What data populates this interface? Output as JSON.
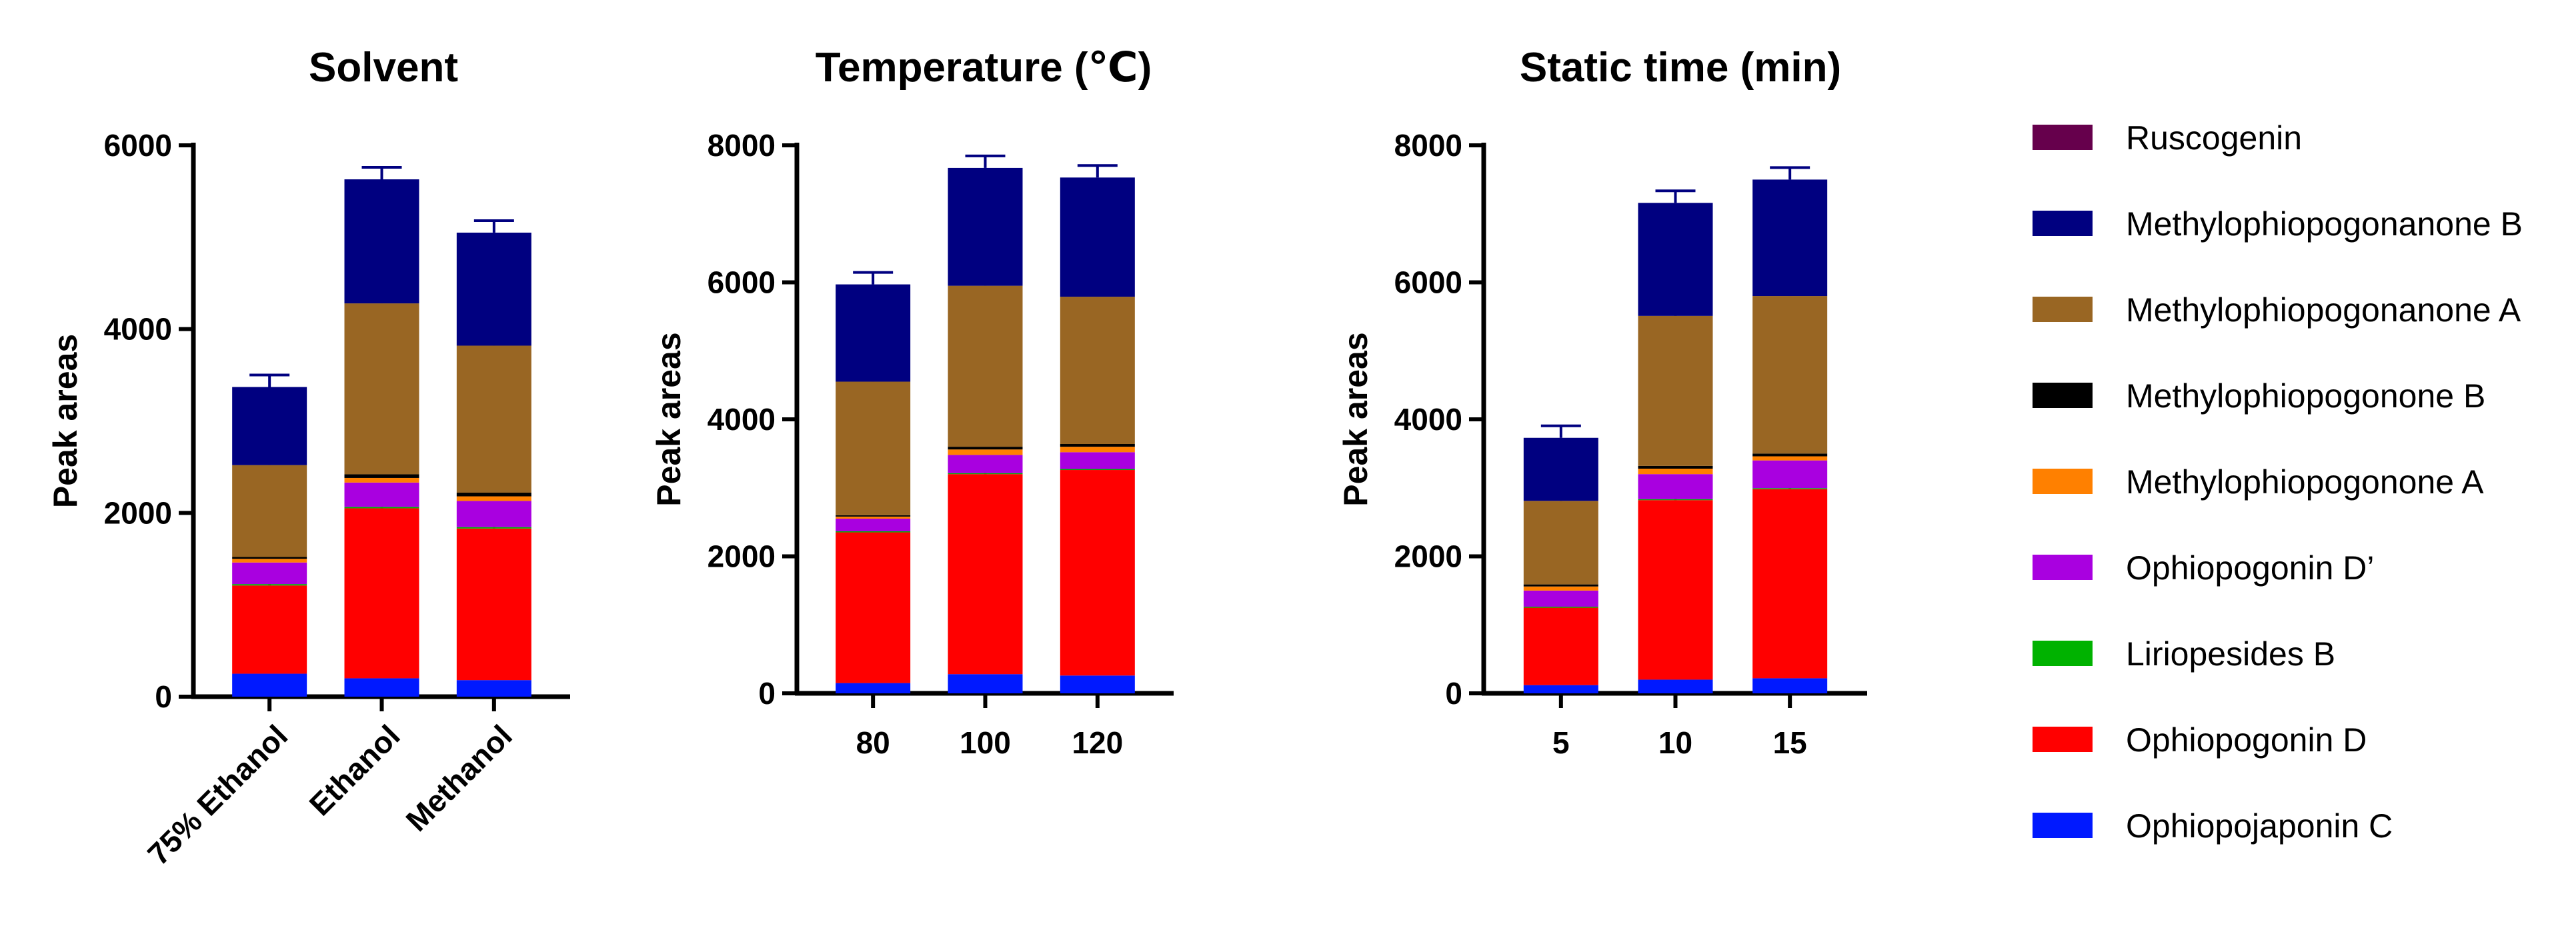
{
  "legend": [
    {
      "name": "Ruscogenin",
      "color": "#66004c"
    },
    {
      "name": "Methylophiopogonanone B",
      "color": "#000080"
    },
    {
      "name": "Methylophiopogonanone A",
      "color": "#996623"
    },
    {
      "name": "Methylophiopogonone B",
      "color": "#000000"
    },
    {
      "name": "Methylophiopogonone A",
      "color": "#ff8000"
    },
    {
      "name": "Ophiopogonin D’",
      "color": "#a900e0"
    },
    {
      "name": "Liriopesides B",
      "color": "#00b200"
    },
    {
      "name": "Ophiopogonin D",
      "color": "#ff0000"
    },
    {
      "name": "Ophiopojaponin C",
      "color": "#0019ff"
    }
  ],
  "chart_data": [
    {
      "type": "bar",
      "stacked": true,
      "title": "Solvent",
      "ylabel": "Peak areas",
      "ylim": [
        0,
        6000
      ],
      "yticks": [
        "0",
        "2000",
        "4000",
        "6000"
      ],
      "categories": [
        "75% Ethanol",
        "Ethanol",
        "Methanol"
      ],
      "series": [
        {
          "name": "Ophiopojaponin C",
          "values": [
            250,
            200,
            180
          ]
        },
        {
          "name": "Ophiopogonin D",
          "values": [
            960,
            1850,
            1650
          ]
        },
        {
          "name": "Liriopesides B",
          "values": [
            15,
            15,
            15
          ]
        },
        {
          "name": "Ophiopogonin D’",
          "values": [
            235,
            265,
            285
          ]
        },
        {
          "name": "Methylophiopogonone A",
          "values": [
            40,
            50,
            50
          ]
        },
        {
          "name": "Methylophiopogonone B",
          "values": [
            20,
            40,
            40
          ]
        },
        {
          "name": "Methylophiopogonanone A",
          "values": [
            1000,
            1860,
            1600
          ]
        },
        {
          "name": "Methylophiopogonanone B",
          "values": [
            850,
            1350,
            1230
          ]
        },
        {
          "name": "Ruscogenin",
          "values": [
            0,
            0,
            0
          ]
        }
      ]
    },
    {
      "type": "bar",
      "stacked": true,
      "title": "Temperature (℃)",
      "ylabel": "Peak areas",
      "ylim": [
        0,
        8000
      ],
      "yticks": [
        "0",
        "2000",
        "4000",
        "6000",
        "8000"
      ],
      "categories": [
        "80",
        "100",
        "120"
      ],
      "series": [
        {
          "name": "Ophiopojaponin C",
          "values": [
            150,
            280,
            260
          ]
        },
        {
          "name": "Ophiopogonin D",
          "values": [
            2200,
            2920,
            3000
          ]
        },
        {
          "name": "Liriopesides B",
          "values": [
            15,
            15,
            15
          ]
        },
        {
          "name": "Ophiopogonin D’",
          "values": [
            185,
            265,
            245
          ]
        },
        {
          "name": "Methylophiopogonone A",
          "values": [
            30,
            80,
            80
          ]
        },
        {
          "name": "Methylophiopogonone B",
          "values": [
            20,
            40,
            40
          ]
        },
        {
          "name": "Methylophiopogonanone A",
          "values": [
            1950,
            2350,
            2150
          ]
        },
        {
          "name": "Methylophiopogonanone B",
          "values": [
            1420,
            1720,
            1740
          ]
        },
        {
          "name": "Ruscogenin",
          "values": [
            0,
            0,
            0
          ]
        }
      ]
    },
    {
      "type": "bar",
      "stacked": true,
      "title": "Static time (min)",
      "ylabel": "Peak areas",
      "ylim": [
        0,
        8000
      ],
      "yticks": [
        "0",
        "2000",
        "4000",
        "6000",
        "8000"
      ],
      "categories": [
        "5",
        "10",
        "15"
      ],
      "series": [
        {
          "name": "Ophiopojaponin C",
          "values": [
            120,
            200,
            220
          ]
        },
        {
          "name": "Ophiopogonin D",
          "values": [
            1130,
            2620,
            2760
          ]
        },
        {
          "name": "Liriopesides B",
          "values": [
            15,
            15,
            15
          ]
        },
        {
          "name": "Ophiopogonin D’",
          "values": [
            235,
            365,
            405
          ]
        },
        {
          "name": "Methylophiopogonone A",
          "values": [
            60,
            80,
            60
          ]
        },
        {
          "name": "Methylophiopogonone B",
          "values": [
            30,
            40,
            40
          ]
        },
        {
          "name": "Methylophiopogonanone A",
          "values": [
            1220,
            2190,
            2300
          ]
        },
        {
          "name": "Methylophiopogonanone B",
          "values": [
            920,
            1650,
            1700
          ]
        },
        {
          "name": "Ruscogenin",
          "values": [
            0,
            0,
            0
          ]
        }
      ]
    }
  ]
}
